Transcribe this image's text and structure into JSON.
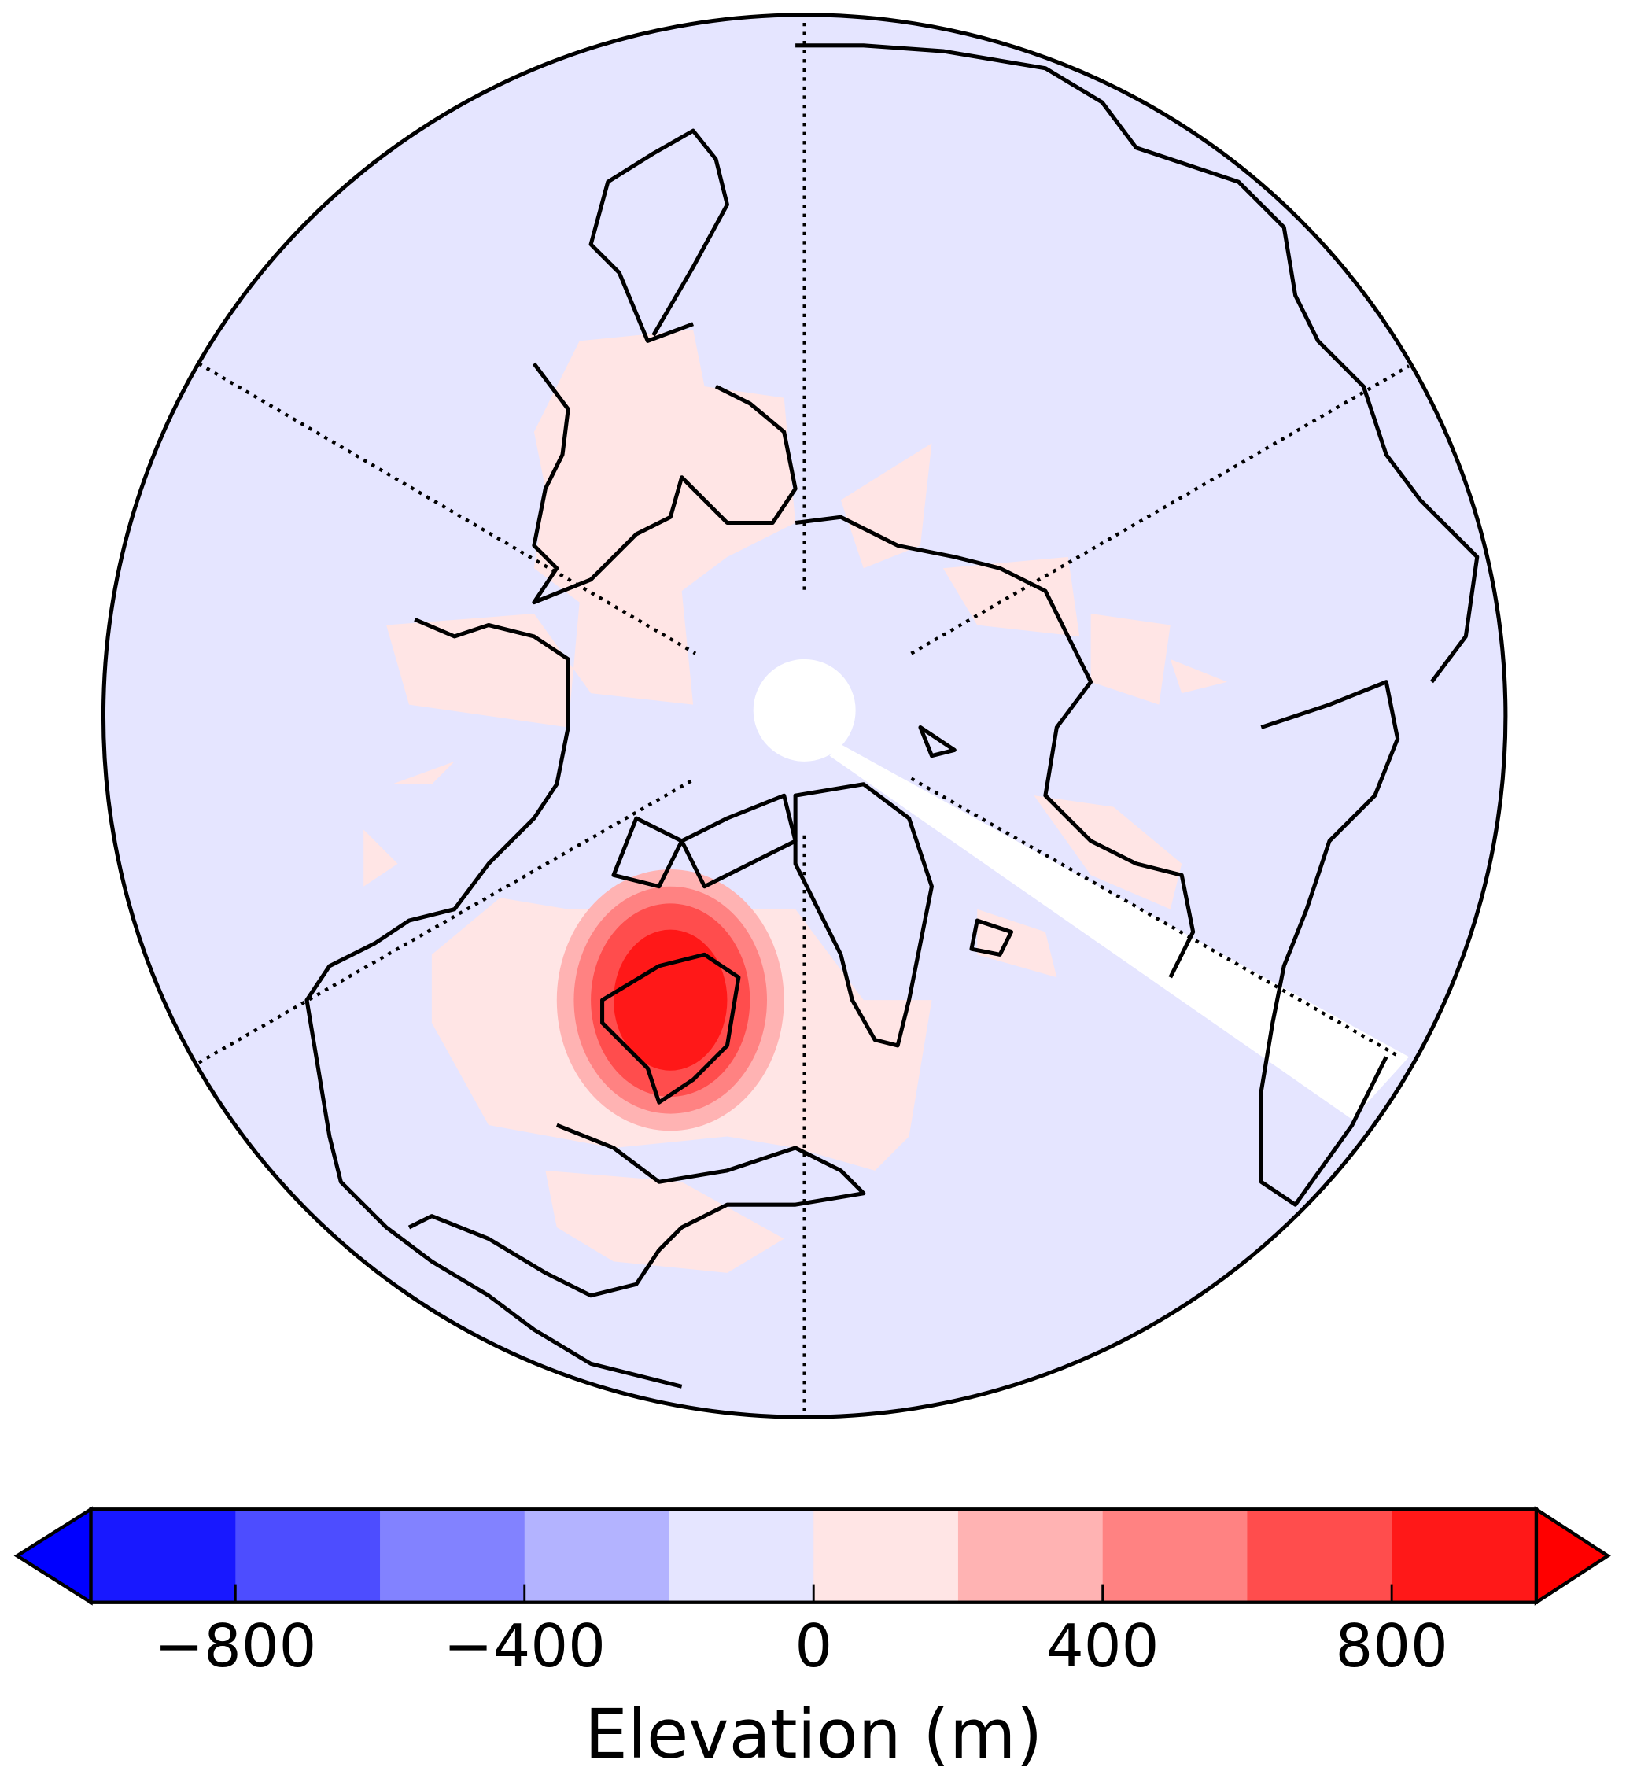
{
  "colorbar": {
    "label": "Elevation (m)",
    "lim": [
      -1000,
      1000
    ],
    "boundaries": [
      -1000,
      -800,
      -600,
      -400,
      -200,
      0,
      200,
      400,
      600,
      800,
      1000
    ],
    "colors": [
      "#1818ff",
      "#4d4dff",
      "#8282ff",
      "#b3b3ff",
      "#e5e5ff",
      "#ffe5e5",
      "#ffb3b3",
      "#ff8282",
      "#ff4d4d",
      "#ff1818"
    ],
    "extend_colors": [
      "#0000ff",
      "#ff0000"
    ],
    "ticks": [
      {
        "value": -800,
        "label": "−800"
      },
      {
        "value": -400,
        "label": "−400"
      },
      0,
      400,
      800
    ]
  }
}
